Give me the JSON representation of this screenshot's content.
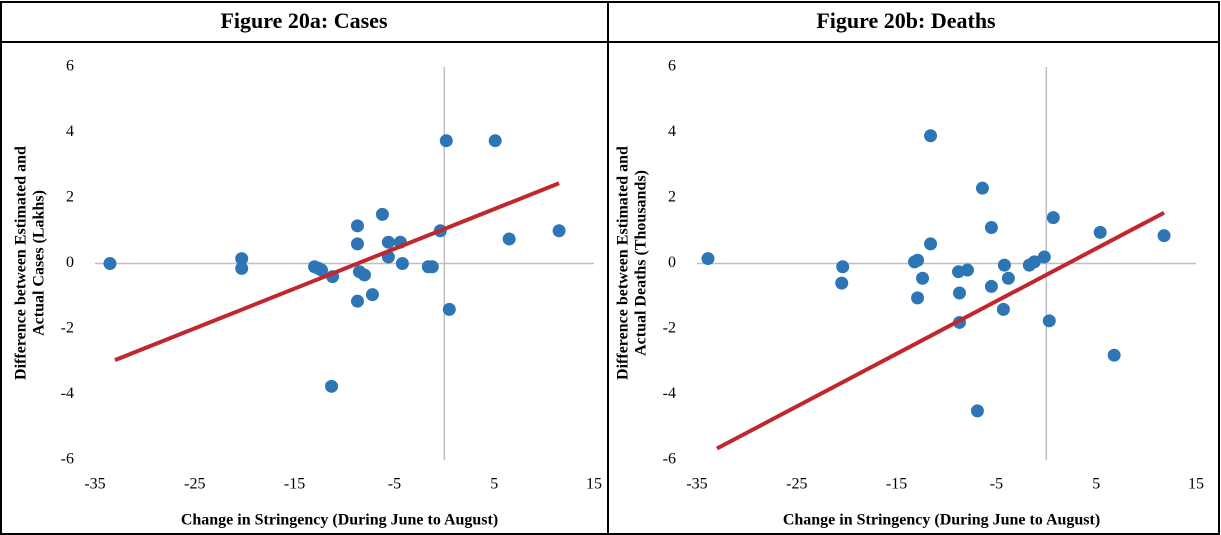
{
  "chart_data": [
    {
      "type": "scatter",
      "title": "Figure 20a: Cases",
      "xlabel": "Change in Stringency (During June to August)",
      "ylabel": [
        "Difference between Estimated and",
        "Actual Cases (Lakhs)"
      ],
      "xlim": [
        -35,
        15
      ],
      "xticks": [
        -35,
        -25,
        -15,
        -5,
        5,
        15
      ],
      "ylim": [
        -6,
        6
      ],
      "yticks": [
        -6,
        -4,
        -2,
        0,
        2,
        4,
        6
      ],
      "series": [
        {
          "type": "scatter",
          "color": "#2e75b6",
          "x": [
            -33.5,
            -20.3,
            -20.3,
            -13.0,
            -12.6,
            -12.3,
            -11.2,
            -11.3,
            -8.7,
            -8.7,
            -8.7,
            -8.5,
            -8.0,
            -7.2,
            -6.2,
            -5.6,
            -5.6,
            -4.4,
            -4.2,
            -1.6,
            -1.2,
            -0.4,
            0.2,
            0.5,
            5.1,
            6.5,
            11.5
          ],
          "values": [
            0,
            0.15,
            -0.15,
            -0.1,
            -0.15,
            -0.2,
            -0.4,
            -3.75,
            1.15,
            0.6,
            -1.15,
            -0.25,
            -0.35,
            -0.95,
            1.5,
            0.65,
            0.2,
            0.65,
            0,
            -0.1,
            -0.1,
            1.0,
            3.75,
            -1.4,
            3.75,
            0.75,
            1.0
          ]
        },
        {
          "type": "line",
          "color": "#c0282d",
          "x": [
            -33,
            11.5
          ],
          "values": [
            -2.95,
            2.45
          ]
        }
      ]
    },
    {
      "type": "scatter",
      "title": "Figure 20b: Deaths",
      "xlabel": "Change in Stringency (During June to August)",
      "ylabel": [
        "Difference between Estimated and",
        "Actual Deaths (Thousands)"
      ],
      "xlim": [
        -35,
        15
      ],
      "xticks": [
        -35,
        -25,
        -15,
        -5,
        5,
        15
      ],
      "ylim": [
        -6,
        6
      ],
      "yticks": [
        -6,
        -4,
        -2,
        0,
        2,
        4,
        6
      ],
      "series": [
        {
          "type": "scatter",
          "color": "#2e75b6",
          "x": [
            -33.9,
            -20.4,
            -20.5,
            -13.2,
            -12.9,
            -12.9,
            -12.4,
            -11.6,
            -11.6,
            -8.8,
            -8.7,
            -8.7,
            -7.9,
            -6.4,
            -6.9,
            -5.5,
            -5.5,
            -4.2,
            -3.8,
            -4.3,
            -1.7,
            -1.2,
            -0.2,
            0.7,
            0.3,
            5.4,
            6.8,
            11.8
          ],
          "values": [
            0.15,
            -0.1,
            -0.6,
            0.05,
            0.1,
            -1.05,
            -0.45,
            0.6,
            3.9,
            -0.25,
            -0.9,
            -1.8,
            -0.2,
            2.3,
            -4.5,
            1.1,
            -0.7,
            -0.05,
            -0.45,
            -1.4,
            -0.05,
            0.05,
            0.2,
            1.4,
            -1.75,
            0.95,
            -2.8,
            0.85
          ]
        },
        {
          "type": "line",
          "color": "#c0282d",
          "x": [
            -33,
            11.8
          ],
          "values": [
            -5.65,
            1.55
          ]
        }
      ]
    }
  ]
}
